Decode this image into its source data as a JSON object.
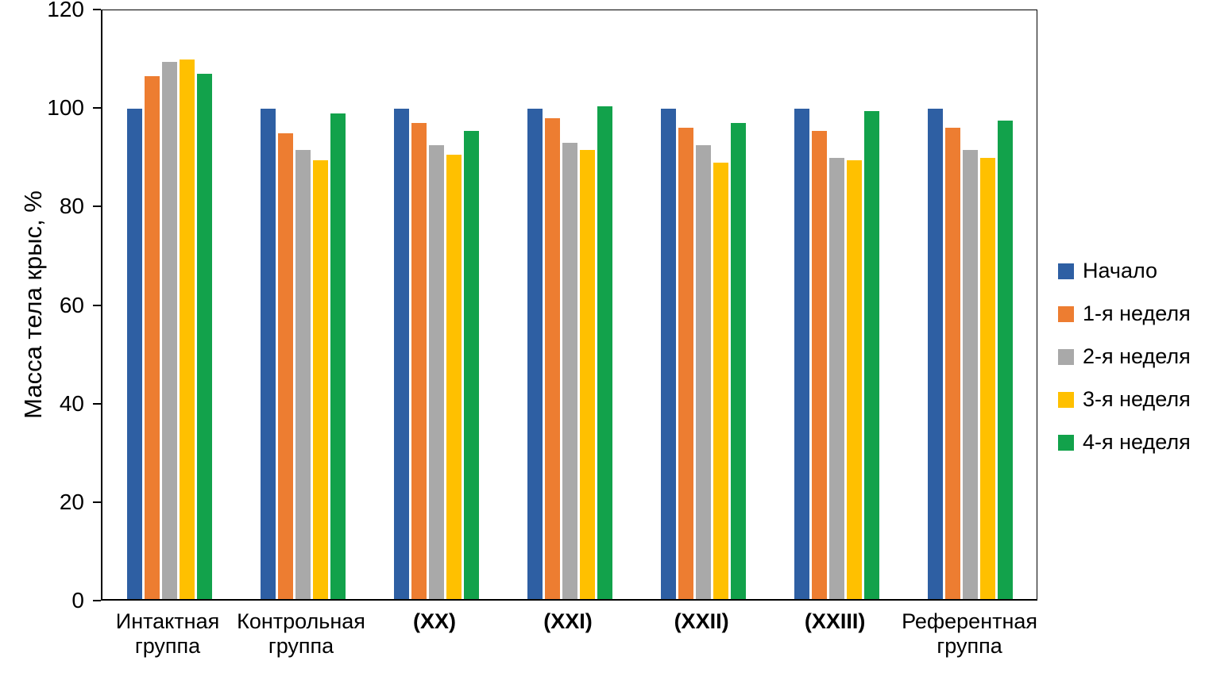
{
  "chart_data": {
    "type": "bar",
    "title": "",
    "xlabel": "",
    "ylabel": "Масса тела крыс, %",
    "ylim": [
      0,
      120
    ],
    "yticks": [
      0,
      20,
      40,
      60,
      80,
      100,
      120
    ],
    "grid": false,
    "legend_position": "right",
    "categories": [
      "Интактная\nгруппа",
      "Контрольная\nгруппа",
      "(XX)",
      "(XXI)",
      "(XXII)",
      "(XXIII)",
      "Референтная\nгруппа"
    ],
    "categories_bold": [
      false,
      false,
      true,
      true,
      true,
      true,
      false
    ],
    "series": [
      {
        "name": "Начало",
        "color": "#2e5fa3",
        "values": [
          100,
          100,
          100,
          100,
          100,
          100,
          100
        ]
      },
      {
        "name": "1-я неделя",
        "color": "#ed7d31",
        "values": [
          106.5,
          95,
          97,
          98,
          96,
          95.5,
          96
        ]
      },
      {
        "name": "2-я неделя",
        "color": "#a9a9a9",
        "values": [
          109.5,
          91.5,
          92.5,
          93,
          92.5,
          90,
          91.5
        ]
      },
      {
        "name": "3-я неделя",
        "color": "#ffc000",
        "values": [
          110,
          89.5,
          90.5,
          91.5,
          89,
          89.5,
          90
        ]
      },
      {
        "name": "4-я неделя",
        "color": "#12a24b",
        "values": [
          107,
          99,
          95.5,
          100.5,
          97,
          99.5,
          97.5
        ]
      }
    ]
  }
}
